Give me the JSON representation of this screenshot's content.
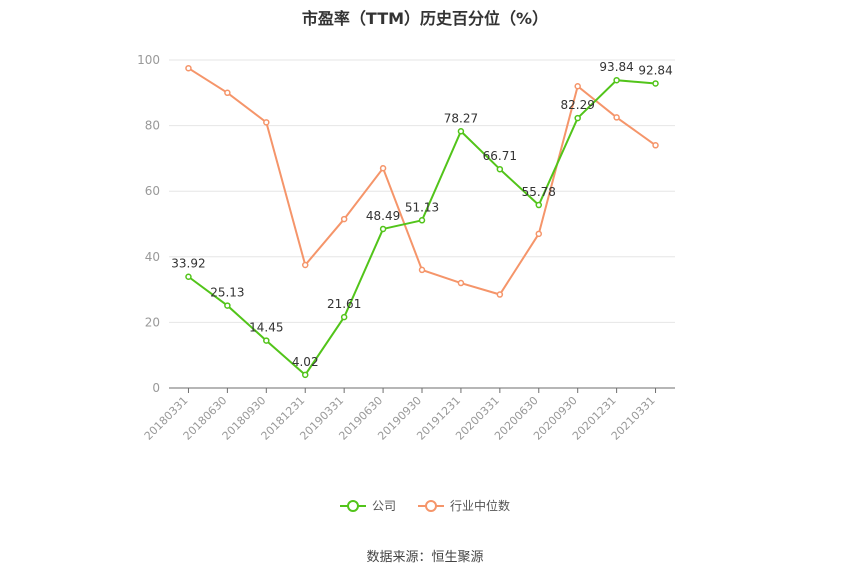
{
  "chart_data": {
    "type": "line",
    "title": "市盈率（TTM）历史百分位（%）",
    "source": "数据来源：恒生聚源",
    "categories": [
      "20180331",
      "20180630",
      "20180930",
      "20181231",
      "20190331",
      "20190630",
      "20190930",
      "20191231",
      "20200331",
      "20200630",
      "20200930",
      "20201231",
      "20210331"
    ],
    "ylim": [
      0,
      100
    ],
    "yticks": [
      0,
      20,
      40,
      60,
      80,
      100
    ],
    "grid": true,
    "legend_position": "bottom",
    "series": [
      {
        "name": "公司",
        "color": "#52c41a",
        "show_labels": true,
        "values": [
          33.92,
          25.13,
          14.45,
          4.02,
          21.61,
          48.49,
          51.13,
          78.27,
          66.71,
          55.78,
          82.29,
          93.84,
          92.84
        ]
      },
      {
        "name": "行业中位数",
        "color": "#f5956a",
        "show_labels": false,
        "values": [
          97.5,
          90.0,
          81.0,
          37.5,
          51.5,
          67.0,
          36.0,
          32.0,
          28.5,
          47.0,
          92.0,
          82.5,
          74.0
        ]
      }
    ]
  }
}
